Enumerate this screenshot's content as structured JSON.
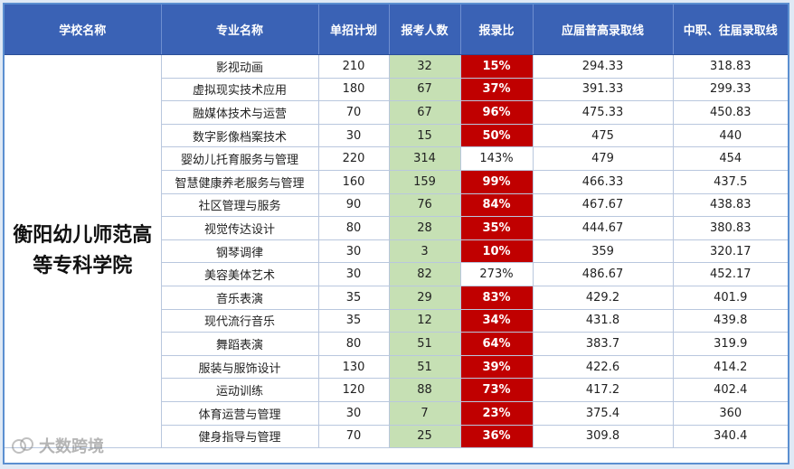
{
  "headers": [
    "学校名称",
    "专业名称",
    "单招计划",
    "报考人数",
    "报录比",
    "应届普高录取线",
    "中职、往届录取线"
  ],
  "school": "衡阳幼儿师范高等专科学院",
  "rows": [
    {
      "major": "影视动画",
      "plan": "210",
      "applicants": "32",
      "ratio": "15%",
      "highlight": true,
      "line_general": "294.33",
      "line_vocational": "318.83"
    },
    {
      "major": "虚拟现实技术应用",
      "plan": "180",
      "applicants": "67",
      "ratio": "37%",
      "highlight": true,
      "line_general": "391.33",
      "line_vocational": "299.33"
    },
    {
      "major": "融媒体技术与运营",
      "plan": "70",
      "applicants": "67",
      "ratio": "96%",
      "highlight": true,
      "line_general": "475.33",
      "line_vocational": "450.83"
    },
    {
      "major": "数字影像档案技术",
      "plan": "30",
      "applicants": "15",
      "ratio": "50%",
      "highlight": true,
      "line_general": "475",
      "line_vocational": "440"
    },
    {
      "major": "婴幼儿托育服务与管理",
      "plan": "220",
      "applicants": "314",
      "ratio": "143%",
      "highlight": false,
      "line_general": "479",
      "line_vocational": "454"
    },
    {
      "major": "智慧健康养老服务与管理",
      "plan": "160",
      "applicants": "159",
      "ratio": "99%",
      "highlight": true,
      "line_general": "466.33",
      "line_vocational": "437.5"
    },
    {
      "major": "社区管理与服务",
      "plan": "90",
      "applicants": "76",
      "ratio": "84%",
      "highlight": true,
      "line_general": "467.67",
      "line_vocational": "438.83"
    },
    {
      "major": "视觉传达设计",
      "plan": "80",
      "applicants": "28",
      "ratio": "35%",
      "highlight": true,
      "line_general": "444.67",
      "line_vocational": "380.83"
    },
    {
      "major": "钢琴调律",
      "plan": "30",
      "applicants": "3",
      "ratio": "10%",
      "highlight": true,
      "line_general": "359",
      "line_vocational": "320.17"
    },
    {
      "major": "美容美体艺术",
      "plan": "30",
      "applicants": "82",
      "ratio": "273%",
      "highlight": false,
      "line_general": "486.67",
      "line_vocational": "452.17"
    },
    {
      "major": "音乐表演",
      "plan": "35",
      "applicants": "29",
      "ratio": "83%",
      "highlight": true,
      "line_general": "429.2",
      "line_vocational": "401.9"
    },
    {
      "major": "现代流行音乐",
      "plan": "35",
      "applicants": "12",
      "ratio": "34%",
      "highlight": true,
      "line_general": "431.8",
      "line_vocational": "439.8"
    },
    {
      "major": "舞蹈表演",
      "plan": "80",
      "applicants": "51",
      "ratio": "64%",
      "highlight": true,
      "line_general": "383.7",
      "line_vocational": "319.9"
    },
    {
      "major": "服装与服饰设计",
      "plan": "130",
      "applicants": "51",
      "ratio": "39%",
      "highlight": true,
      "line_general": "422.6",
      "line_vocational": "414.2"
    },
    {
      "major": "运动训练",
      "plan": "120",
      "applicants": "88",
      "ratio": "73%",
      "highlight": true,
      "line_general": "417.2",
      "line_vocational": "402.4"
    },
    {
      "major": "体育运营与管理",
      "plan": "30",
      "applicants": "7",
      "ratio": "23%",
      "highlight": true,
      "line_general": "375.4",
      "line_vocational": "360"
    },
    {
      "major": "健身指导与管理",
      "plan": "70",
      "applicants": "25",
      "ratio": "36%",
      "highlight": true,
      "line_general": "309.8",
      "line_vocational": "340.4"
    }
  ],
  "watermark": "大数跨境",
  "colors": {
    "header_bg": "#3a62b5",
    "applicants_bg": "#c6e0b4",
    "ratio_high_bg": "#c00000"
  }
}
